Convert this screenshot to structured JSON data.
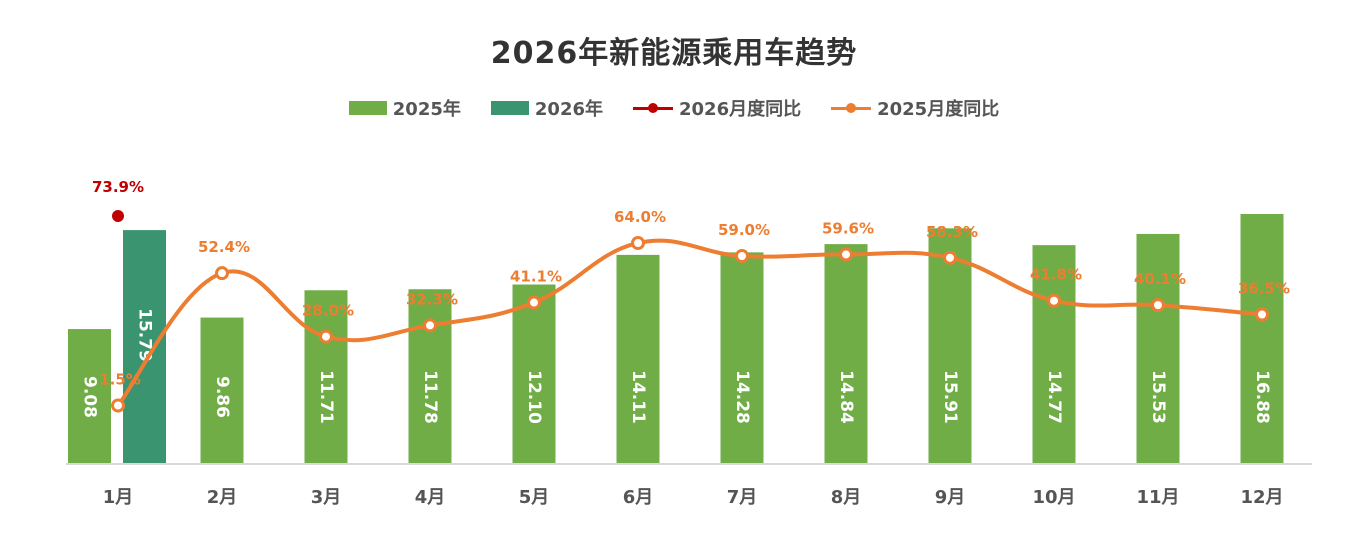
{
  "chart_data": {
    "type": "bar",
    "title": "2026年新能源乘用车趋势",
    "categories": [
      "1月",
      "2月",
      "3月",
      "4月",
      "5月",
      "6月",
      "7月",
      "8月",
      "9月",
      "10月",
      "11月",
      "12月"
    ],
    "series": [
      {
        "name": "2025年",
        "type": "bar",
        "color": "#70ad47",
        "values": [
          9.08,
          9.86,
          11.71,
          11.78,
          12.1,
          14.11,
          14.28,
          14.84,
          15.91,
          14.77,
          15.53,
          16.88
        ]
      },
      {
        "name": "2026年",
        "type": "bar",
        "color": "#3a9470",
        "values": [
          15.79,
          null,
          null,
          null,
          null,
          null,
          null,
          null,
          null,
          null,
          null,
          null
        ]
      },
      {
        "name": "2026月度同比",
        "type": "line",
        "color": "#c00000",
        "values": [
          73.9,
          null,
          null,
          null,
          null,
          null,
          null,
          null,
          null,
          null,
          null,
          null
        ],
        "labels": [
          "73.9%",
          "",
          "",
          "",
          "",
          "",
          "",
          "",
          "",
          "",
          "",
          ""
        ]
      },
      {
        "name": "2025月度同比",
        "type": "line",
        "color": "#ed7d31",
        "values": [
          1.5,
          52.4,
          28.0,
          32.3,
          41.1,
          64.0,
          59.0,
          59.6,
          58.3,
          41.8,
          40.1,
          36.5
        ],
        "labels": [
          "1.5%",
          "52.4%",
          "28.0%",
          "32.3%",
          "41.1%",
          "64.0%",
          "59.0%",
          "59.6%",
          "58.3%",
          "41.8%",
          "40.1%",
          "36.5%"
        ]
      }
    ],
    "bar_value_labels": {
      "2025年": [
        "9.08",
        "9.86",
        "11.71",
        "11.78",
        "12.10",
        "14.11",
        "14.28",
        "14.84",
        "15.91",
        "14.77",
        "15.53",
        "16.88"
      ],
      "2026年": [
        "15.79"
      ]
    },
    "legend_position": "top",
    "grid": false
  }
}
